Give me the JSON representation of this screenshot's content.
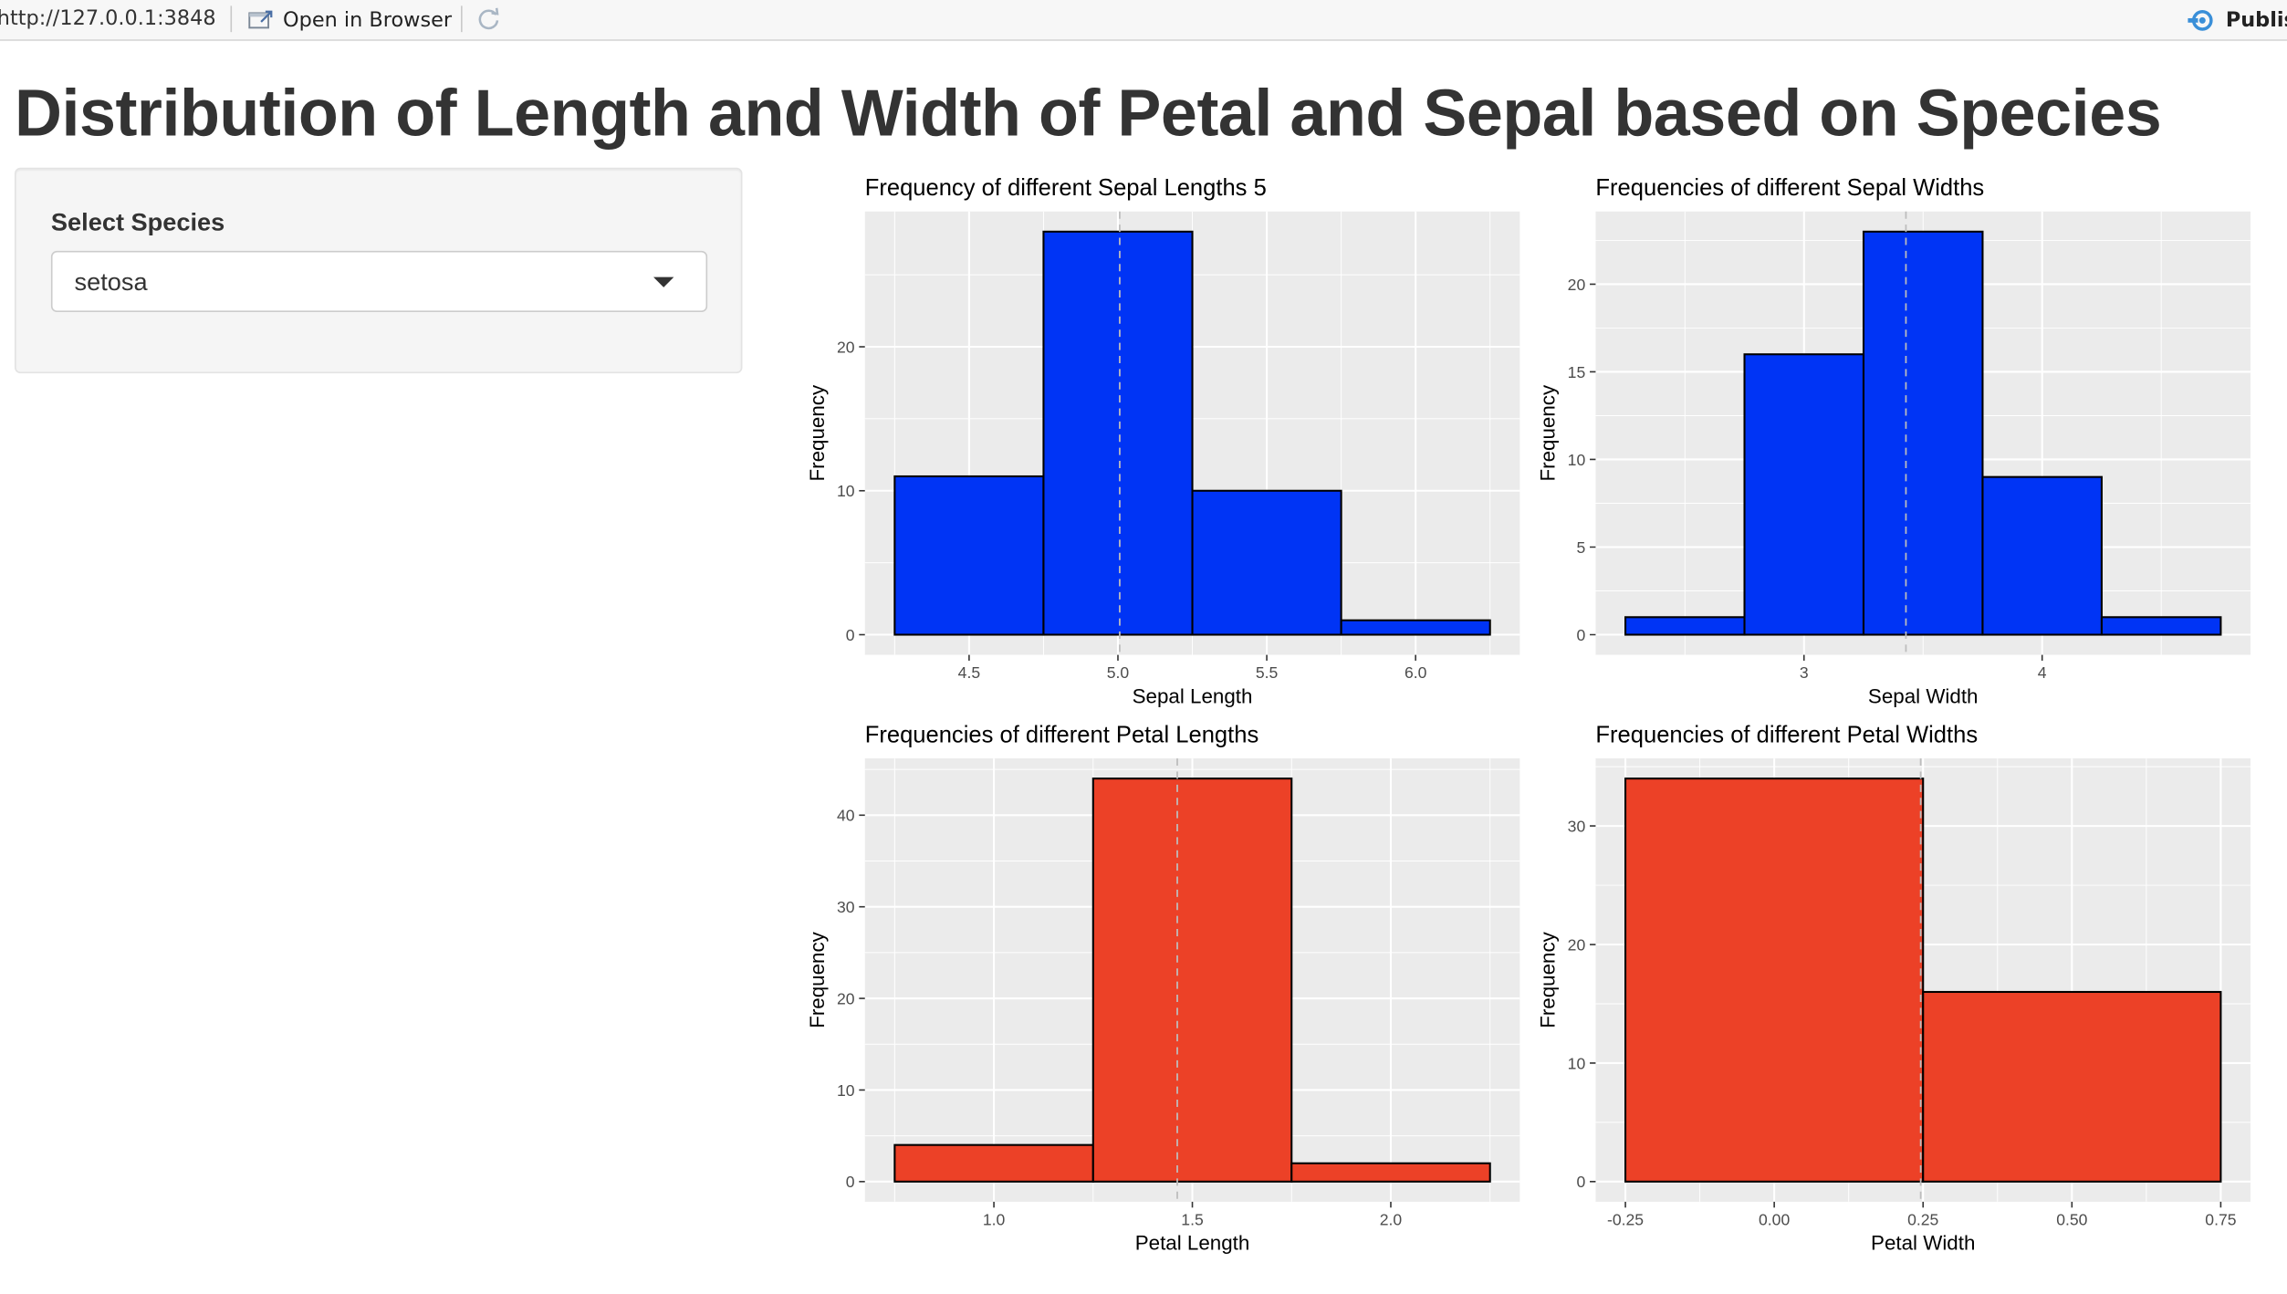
{
  "toolbar": {
    "url": "http://127.0.0.1:3848",
    "open_in_browser_label": "Open in Browser",
    "publish_label": "Publish"
  },
  "page": {
    "title": "Distribution of Length and Width of Petal and Sepal based on Species"
  },
  "sidebar": {
    "select_label": "Select Species",
    "selected_value": "setosa"
  },
  "colors": {
    "sepal_fill": "#0034f5",
    "petal_fill": "#ec4127",
    "panel_bg": "#ebebeb",
    "grid": "#ffffff",
    "mean_line": "#bdbdbd"
  },
  "chart_data": [
    {
      "id": "sepal-length",
      "type": "bar",
      "title": "Frequency of different Sepal Lengths 5",
      "xlabel": "Sepal Length",
      "ylabel": "Frequency",
      "bins": [
        [
          4.25,
          4.75,
          11
        ],
        [
          4.75,
          5.25,
          28
        ],
        [
          5.25,
          5.75,
          10
        ],
        [
          5.75,
          6.25,
          1
        ]
      ],
      "xlim": [
        4.15,
        6.35
      ],
      "ylim": [
        -1.4,
        29.4
      ],
      "xticks": [
        4.5,
        5.0,
        5.5,
        6.0
      ],
      "xtick_labels": [
        "4.5",
        "5.0",
        "5.5",
        "6.0"
      ],
      "yticks": [
        0,
        10,
        20
      ],
      "ytick_labels": [
        "0",
        "10",
        "20"
      ],
      "mean_line": 5.006,
      "fill": "#0034f5"
    },
    {
      "id": "sepal-width",
      "type": "bar",
      "title": "Frequencies of different Sepal Widths",
      "xlabel": "Sepal Width",
      "ylabel": "Frequency",
      "bins": [
        [
          2.25,
          2.75,
          1
        ],
        [
          2.75,
          3.25,
          16
        ],
        [
          3.25,
          3.75,
          23
        ],
        [
          3.75,
          4.25,
          9
        ],
        [
          4.25,
          4.75,
          1
        ]
      ],
      "xlim": [
        2.125,
        4.875
      ],
      "ylim": [
        -1.15,
        24.15
      ],
      "xticks": [
        3,
        4
      ],
      "xtick_labels": [
        "3",
        "4"
      ],
      "yticks": [
        0,
        5,
        10,
        15,
        20
      ],
      "ytick_labels": [
        "0",
        "5",
        "10",
        "15",
        "20"
      ],
      "mean_line": 3.428,
      "fill": "#0034f5"
    },
    {
      "id": "petal-length",
      "type": "bar",
      "title": "Frequencies of different Petal Lengths",
      "xlabel": "Petal Length",
      "ylabel": "Frequency",
      "bins": [
        [
          0.75,
          1.25,
          4
        ],
        [
          1.25,
          1.75,
          44
        ],
        [
          1.75,
          2.25,
          2
        ]
      ],
      "xlim": [
        0.675,
        2.325
      ],
      "ylim": [
        -2.2,
        46.2
      ],
      "xticks": [
        1.0,
        1.5,
        2.0
      ],
      "xtick_labels": [
        "1.0",
        "1.5",
        "2.0"
      ],
      "yticks": [
        0,
        10,
        20,
        30,
        40
      ],
      "ytick_labels": [
        "0",
        "10",
        "20",
        "30",
        "40"
      ],
      "mean_line": 1.462,
      "fill": "#ec4127"
    },
    {
      "id": "petal-width",
      "type": "bar",
      "title": "Frequencies of different Petal Widths",
      "xlabel": "Petal Width",
      "ylabel": "Frequency",
      "bins": [
        [
          -0.25,
          0.25,
          34
        ],
        [
          0.25,
          0.75,
          16
        ]
      ],
      "xlim": [
        -0.3,
        0.8
      ],
      "ylim": [
        -1.7,
        35.7
      ],
      "xticks": [
        -0.25,
        0.0,
        0.25,
        0.5,
        0.75
      ],
      "xtick_labels": [
        "-0.25",
        "0.00",
        "0.25",
        "0.50",
        "0.75"
      ],
      "yticks": [
        0,
        10,
        20,
        30
      ],
      "ytick_labels": [
        "0",
        "10",
        "20",
        "30"
      ],
      "mean_line": 0.246,
      "fill": "#ec4127"
    }
  ]
}
